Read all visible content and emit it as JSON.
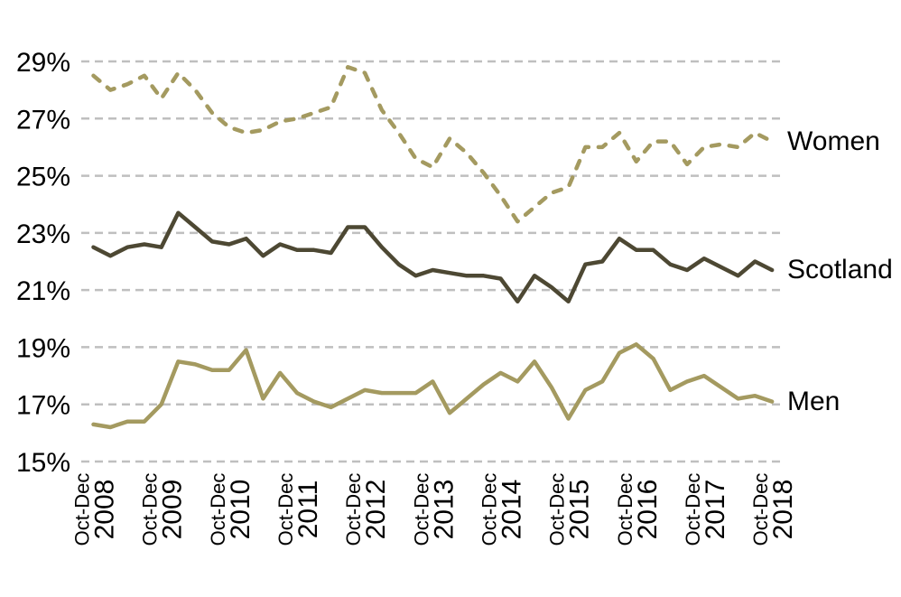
{
  "chart_data": {
    "type": "line",
    "title": "",
    "unit": "percent",
    "y_axis": {
      "tick_labels": [
        "29%",
        "27%",
        "25%",
        "23%",
        "21%",
        "19%",
        "17%",
        "15%"
      ],
      "tick_values": [
        29,
        27,
        25,
        23,
        21,
        19,
        17,
        15
      ],
      "min": 15,
      "max": 29,
      "gridline_style": "dashed"
    },
    "x_axis": {
      "ticks": [
        {
          "period": "Oct-Dec",
          "year": "2008",
          "quarter_index": 0
        },
        {
          "period": "Oct-Dec",
          "year": "2009",
          "quarter_index": 4
        },
        {
          "period": "Oct-Dec",
          "year": "2010",
          "quarter_index": 8
        },
        {
          "period": "Oct-Dec",
          "year": "2011",
          "quarter_index": 12
        },
        {
          "period": "Oct-Dec",
          "year": "2012",
          "quarter_index": 16
        },
        {
          "period": "Oct-Dec",
          "year": "2013",
          "quarter_index": 20
        },
        {
          "period": "Oct-Dec",
          "year": "2014",
          "quarter_index": 24
        },
        {
          "period": "Oct-Dec",
          "year": "2015",
          "quarter_index": 28
        },
        {
          "period": "Oct-Dec",
          "year": "2016",
          "quarter_index": 32
        },
        {
          "period": "Oct-Dec",
          "year": "2017",
          "quarter_index": 36
        },
        {
          "period": "Oct-Dec",
          "year": "2018",
          "quarter_index": 40
        }
      ],
      "points_per_year": 4,
      "total_points": 41
    },
    "series": [
      {
        "name": "Women",
        "line_style": "dashed",
        "color": "#A49A60",
        "values": [
          28.5,
          28.0,
          28.2,
          28.5,
          27.7,
          28.6,
          28.0,
          27.2,
          26.7,
          26.5,
          26.6,
          26.9,
          27.0,
          27.2,
          27.4,
          28.8,
          28.6,
          27.3,
          26.5,
          25.6,
          25.3,
          26.3,
          25.8,
          25.1,
          24.3,
          23.4,
          23.9,
          24.4,
          24.6,
          26.0,
          26.0,
          26.5,
          25.5,
          26.2,
          26.2,
          25.4,
          26.0,
          26.1,
          26.0,
          26.5,
          26.2
        ]
      },
      {
        "name": "Scotland",
        "line_style": "solid",
        "color": "#4D4833",
        "values": [
          22.5,
          22.2,
          22.5,
          22.6,
          22.5,
          23.7,
          23.2,
          22.7,
          22.6,
          22.8,
          22.2,
          22.6,
          22.4,
          22.4,
          22.3,
          23.2,
          23.2,
          22.5,
          21.9,
          21.5,
          21.7,
          21.6,
          21.5,
          21.5,
          21.4,
          20.6,
          21.5,
          21.1,
          20.6,
          21.9,
          22.0,
          22.8,
          22.4,
          22.4,
          21.9,
          21.7,
          22.1,
          21.8,
          21.5,
          22.0,
          21.7
        ]
      },
      {
        "name": "Men",
        "line_style": "solid",
        "color": "#A49A60",
        "values": [
          16.3,
          16.2,
          16.4,
          16.4,
          17.0,
          18.5,
          18.4,
          18.2,
          18.2,
          18.9,
          17.2,
          18.1,
          17.4,
          17.1,
          16.9,
          17.2,
          17.5,
          17.4,
          17.4,
          17.4,
          17.8,
          16.7,
          17.2,
          17.7,
          18.1,
          17.8,
          18.5,
          17.6,
          16.5,
          17.5,
          17.8,
          18.8,
          19.1,
          18.6,
          17.5,
          17.8,
          18.0,
          17.6,
          17.2,
          17.3,
          17.1
        ]
      }
    ],
    "legend_position": "right-of-line-ends"
  },
  "colors": {
    "gridline": "#BFBFBF",
    "text": "#000000",
    "background": "#FFFFFF"
  }
}
